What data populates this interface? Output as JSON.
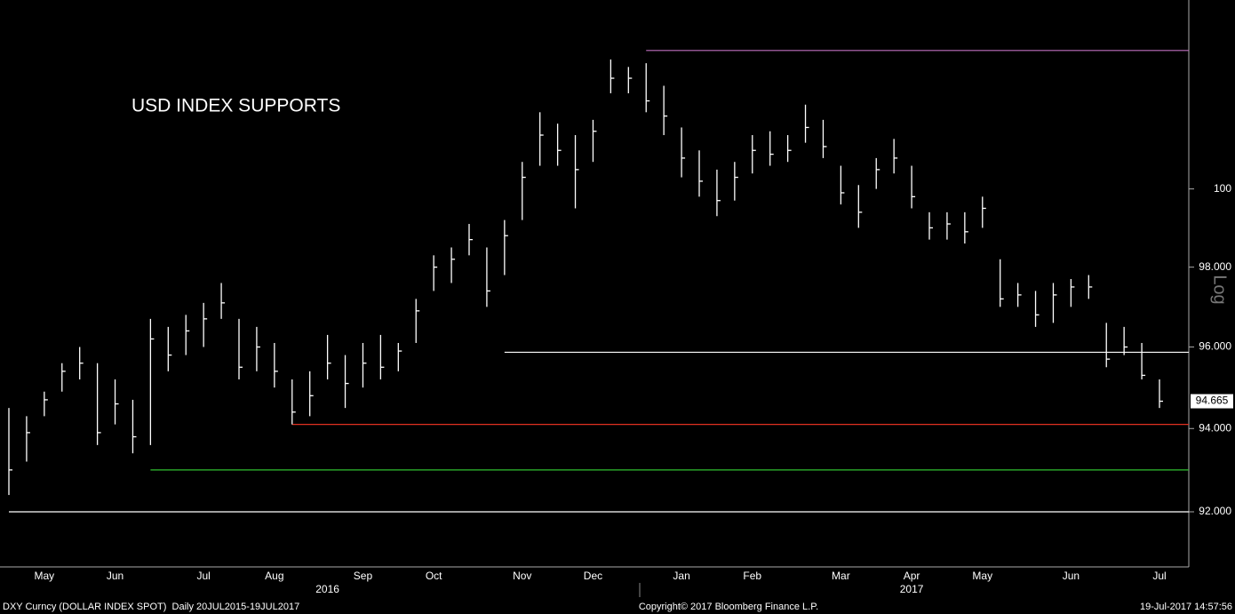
{
  "chart_data": {
    "type": "ohlc",
    "title": "USD INDEX SUPPORTS",
    "axis_note": "Log",
    "log_scale": true,
    "color": "#ffffff",
    "categories": [
      null,
      null,
      "May",
      null,
      null,
      null,
      "Jun",
      null,
      null,
      null,
      null,
      "Jul",
      null,
      null,
      null,
      "Aug",
      null,
      null,
      null,
      null,
      "Sep",
      null,
      null,
      null,
      "Oct",
      null,
      null,
      null,
      null,
      "Nov",
      null,
      null,
      null,
      "Dec",
      null,
      null,
      null,
      null,
      "Jan",
      null,
      null,
      null,
      "Feb",
      null,
      null,
      null,
      null,
      "Mar",
      null,
      null,
      null,
      "Apr",
      null,
      null,
      null,
      "May",
      null,
      null,
      null,
      null,
      "Jun",
      null,
      null,
      null,
      null,
      "Jul"
    ],
    "year_categories": [
      null,
      null,
      null,
      null,
      null,
      null,
      null,
      null,
      null,
      null,
      null,
      null,
      null,
      null,
      null,
      null,
      null,
      null,
      "2016",
      null,
      null,
      null,
      null,
      null,
      null,
      null,
      null,
      null,
      null,
      null,
      null,
      null,
      null,
      null,
      null,
      null,
      null,
      null,
      null,
      null,
      null,
      null,
      null,
      null,
      null,
      null,
      null,
      null,
      null,
      null,
      null,
      "2017",
      null,
      null,
      null,
      null,
      null,
      null,
      null,
      null,
      null,
      null,
      null,
      null,
      null,
      null
    ],
    "high": [
      94.5,
      94.3,
      94.9,
      95.6,
      96.0,
      95.6,
      95.2,
      94.7,
      96.7,
      96.5,
      96.8,
      97.1,
      97.6,
      96.7,
      96.5,
      96.1,
      95.2,
      95.4,
      96.3,
      95.8,
      96.1,
      96.3,
      96.1,
      97.2,
      98.3,
      98.5,
      99.1,
      98.5,
      99.2,
      100.7,
      102.0,
      101.7,
      101.4,
      101.8,
      103.4,
      103.2,
      103.3,
      102.7,
      101.6,
      101.0,
      100.5,
      100.7,
      101.4,
      101.5,
      101.4,
      102.2,
      101.8,
      100.6,
      100.1,
      100.8,
      101.3,
      100.6,
      99.4,
      99.4,
      99.4,
      99.8,
      98.2,
      97.6,
      97.4,
      97.6,
      97.7,
      97.8,
      96.6,
      96.5,
      96.1,
      95.2
    ],
    "low": [
      92.4,
      93.2,
      94.3,
      94.9,
      95.2,
      93.6,
      94.1,
      93.4,
      93.6,
      95.4,
      95.8,
      96.0,
      96.7,
      95.2,
      95.4,
      95.0,
      94.1,
      94.3,
      95.2,
      94.5,
      95.0,
      95.2,
      95.4,
      96.1,
      97.4,
      97.6,
      98.3,
      97.0,
      97.8,
      99.2,
      100.6,
      100.6,
      99.5,
      100.7,
      102.5,
      102.5,
      102.0,
      101.4,
      100.3,
      99.8,
      99.3,
      99.7,
      100.4,
      100.6,
      100.7,
      101.2,
      100.8,
      99.6,
      99.0,
      100.0,
      100.4,
      99.5,
      98.7,
      98.7,
      98.6,
      99.0,
      97.0,
      97.0,
      96.5,
      96.6,
      97.0,
      97.2,
      95.5,
      95.8,
      95.2,
      94.5
    ],
    "close": [
      93.0,
      93.9,
      94.7,
      95.4,
      95.6,
      93.9,
      94.6,
      93.8,
      96.2,
      95.8,
      96.4,
      96.7,
      97.1,
      95.5,
      96.0,
      95.4,
      94.4,
      94.8,
      95.6,
      95.1,
      95.6,
      95.5,
      95.9,
      96.9,
      98.0,
      98.2,
      98.7,
      97.4,
      98.8,
      100.3,
      101.4,
      101.0,
      100.5,
      101.5,
      102.9,
      102.9,
      102.3,
      101.9,
      100.8,
      100.2,
      99.7,
      100.3,
      101.0,
      100.9,
      101.0,
      101.6,
      101.1,
      99.9,
      99.4,
      100.5,
      100.8,
      99.8,
      99.0,
      99.1,
      98.9,
      99.5,
      97.2,
      97.3,
      96.8,
      97.3,
      97.5,
      97.5,
      95.7,
      96.0,
      95.3,
      94.665
    ],
    "support_lines": [
      {
        "value": 103.64,
        "color": "#c070c0",
        "start_index": 36
      },
      {
        "value": 95.87,
        "color": "#ffffff",
        "start_index": 28
      },
      {
        "value": 94.1,
        "color": "#e03020",
        "start_index": 16
      },
      {
        "value": 93.0,
        "color": "#30c030",
        "start_index": 8
      },
      {
        "value": 92.0,
        "color": "#ffffff",
        "start_index": 0
      }
    ],
    "ylim": [
      90.7,
      105
    ],
    "yticks": [
      {
        "value": 92,
        "label": "92.000"
      },
      {
        "value": 94,
        "label": "94.000"
      },
      {
        "value": 96,
        "label": "96.000"
      },
      {
        "value": 98,
        "label": "98.000"
      },
      100
    ],
    "footer_left": "DXY Curncy (DOLLAR INDEX SPOT)  Daily 20JUL2015-19JUL2017",
    "footer_center": "Copyright© 2017 Bloomberg Finance L.P.",
    "footer_right": "19-Jul-2017 14:57:56"
  }
}
